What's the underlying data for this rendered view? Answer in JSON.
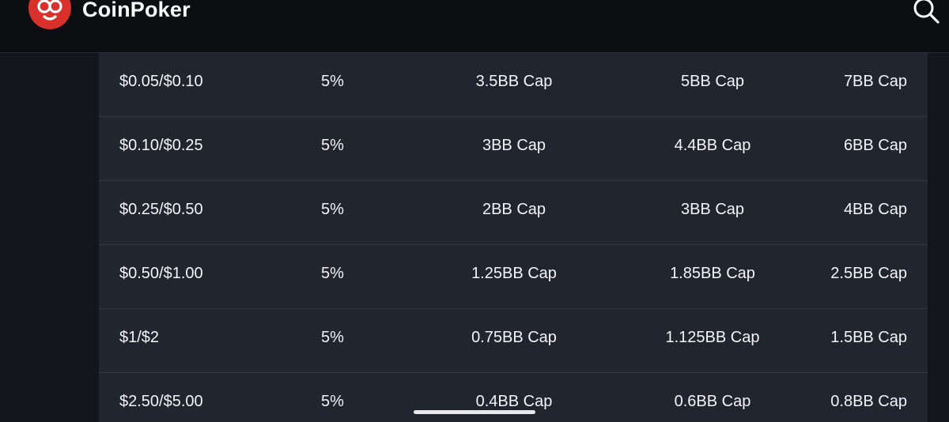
{
  "header": {
    "brand": "CoinPoker",
    "logo_icon": "coinpoker-logo-icon",
    "search_icon": "search-icon",
    "accent_color": "#d8302a"
  },
  "table": {
    "rows": [
      {
        "stakes": "$0.05/$0.10",
        "rake": "5%",
        "cap_a": "3.5BB Cap",
        "cap_b": "5BB Cap",
        "cap_c": "7BB Cap"
      },
      {
        "stakes": "$0.10/$0.25",
        "rake": "5%",
        "cap_a": "3BB Cap",
        "cap_b": "4.4BB Cap",
        "cap_c": "6BB Cap"
      },
      {
        "stakes": "$0.25/$0.50",
        "rake": "5%",
        "cap_a": "2BB Cap",
        "cap_b": "3BB Cap",
        "cap_c": "4BB Cap"
      },
      {
        "stakes": "$0.50/$1.00",
        "rake": "5%",
        "cap_a": "1.25BB Cap",
        "cap_b": "1.85BB Cap",
        "cap_c": "2.5BB Cap"
      },
      {
        "stakes": "$1/$2",
        "rake": "5%",
        "cap_a": "0.75BB Cap",
        "cap_b": "1.125BB Cap",
        "cap_c": "1.5BB Cap"
      },
      {
        "stakes": "$2.50/$5.00",
        "rake": "5%",
        "cap_a": "0.4BB Cap",
        "cap_b": "0.6BB Cap",
        "cap_c": "0.8BB Cap"
      }
    ]
  }
}
